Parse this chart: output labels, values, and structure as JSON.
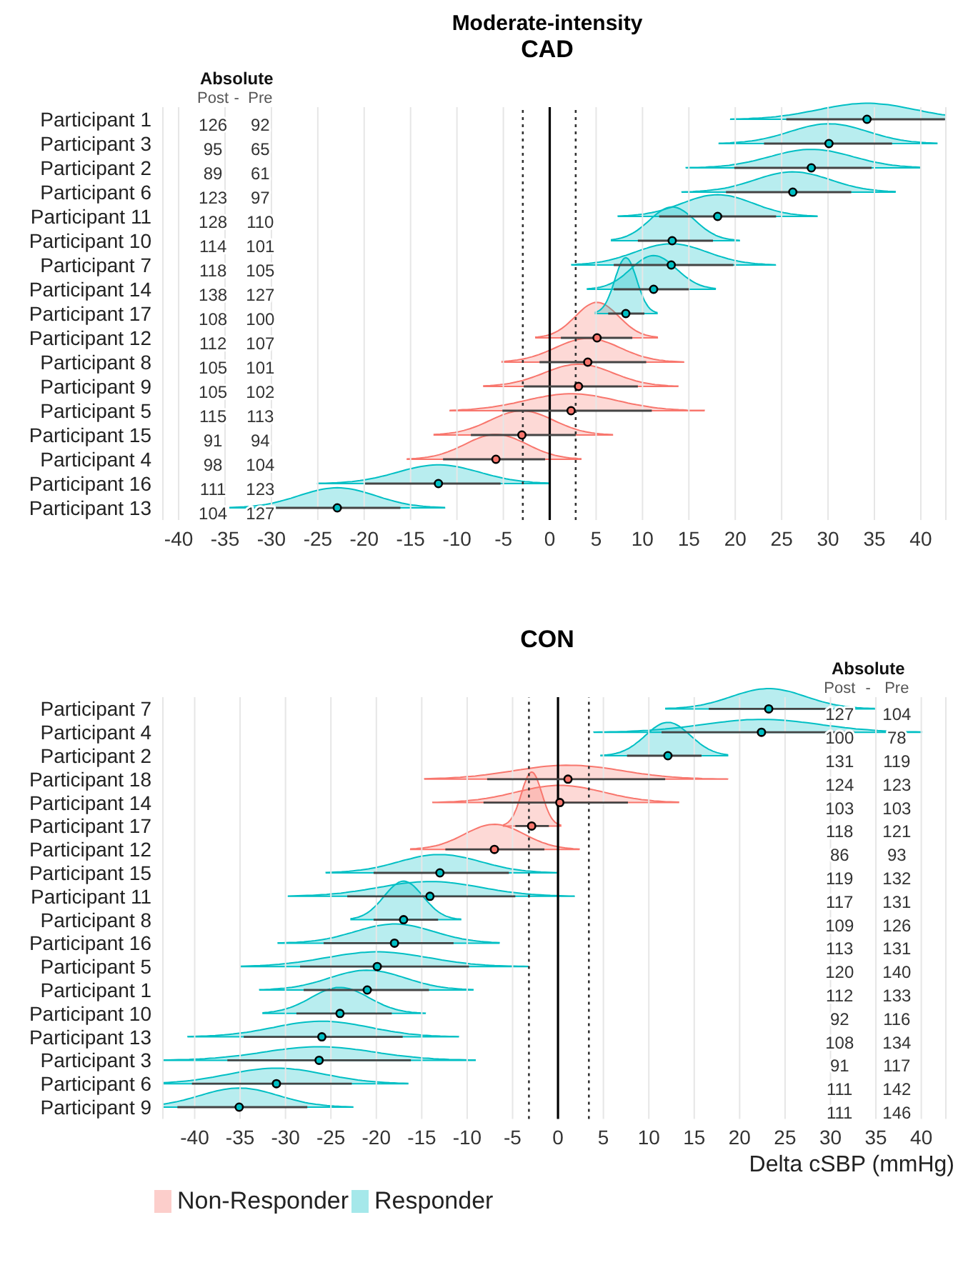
{
  "chart_data": [
    {
      "type": "scatter",
      "title": "Moderate-intensity",
      "subtitle": "CAD",
      "orientation": "horizontal",
      "categories": [
        "Participant 1",
        "Participant 3",
        "Participant 2",
        "Participant 6",
        "Participant 11",
        "Participant 10",
        "Participant 7",
        "Participant 14",
        "Participant 17",
        "Participant 12",
        "Participant 8",
        "Participant 9",
        "Participant 5",
        "Participant 15",
        "Participant 4",
        "Participant 16",
        "Participant 13"
      ],
      "series": [
        {
          "color": "#f8766d",
          "values": [
            null,
            null,
            null,
            null,
            null,
            null,
            null,
            null,
            null,
            5.1,
            4.1,
            3.1,
            2.3,
            -3.0,
            -5.8,
            null,
            null
          ],
          "errors": [
            null,
            null,
            null,
            null,
            null,
            null,
            null,
            null,
            null,
            [
              1.2,
              8.9
            ],
            [
              -1.1,
              10.4
            ],
            [
              -2.8,
              9.5
            ],
            [
              -5.1,
              11.0
            ],
            [
              -8.5,
              2.8
            ],
            [
              -11.5,
              -0.5
            ],
            null,
            null
          ]
        },
        {
          "color": "#00bfc4",
          "values": [
            34.2,
            30.1,
            28.2,
            26.2,
            18.1,
            13.2,
            13.1,
            11.2,
            8.2,
            null,
            null,
            null,
            null,
            null,
            null,
            -12.0,
            -22.9
          ],
          "errors": [
            [
              25.5,
              42.6
            ],
            [
              23.1,
              36.9
            ],
            [
              19.9,
              34.7
            ],
            [
              19.0,
              32.5
            ],
            [
              11.8,
              24.4
            ],
            [
              9.5,
              17.6
            ],
            [
              6.9,
              19.8
            ],
            [
              6.9,
              15.0
            ],
            [
              6.3,
              10.2
            ],
            null,
            null,
            null,
            null,
            null,
            null,
            [
              -19.9,
              -5.3
            ],
            [
              -29.7,
              -16.1
            ]
          ]
        }
      ],
      "xlim": [
        -41.7,
        42.7
      ],
      "xticks": [
        -40,
        -35,
        -30,
        -25,
        -20,
        -15,
        -10,
        -5,
        0,
        5,
        10,
        15,
        20,
        25,
        30,
        35,
        40
      ],
      "grid": "x",
      "ref_lines": [
        {
          "axis": "x",
          "value": 0,
          "color": "#000000",
          "line_style": "solid"
        },
        {
          "axis": "x",
          "value": -2.9,
          "color": "#333333",
          "line_style": "dotted"
        },
        {
          "axis": "x",
          "value": 2.8,
          "color": "#333333",
          "line_style": "dotted"
        }
      ],
      "annotations": [
        "Absolute",
        "Post",
        "-",
        "Pre",
        "126",
        "92",
        "95",
        "65",
        "89",
        "61",
        "123",
        "97",
        "128",
        "110",
        "114",
        "101",
        "118",
        "105",
        "138",
        "127",
        "108",
        "100",
        "112",
        "107",
        "105",
        "101",
        "105",
        "102",
        "115",
        "113",
        "91",
        "94",
        "98",
        "104",
        "111",
        "123",
        "104",
        "127"
      ]
    },
    {
      "type": "scatter",
      "title": "CON",
      "orientation": "horizontal",
      "xlabel": "Delta cSBP (mmHg)",
      "categories": [
        "Participant 7",
        "Participant 4",
        "Participant 2",
        "Participant 18",
        "Participant 14",
        "Participant 17",
        "Participant 12",
        "Participant 15",
        "Participant 11",
        "Participant 8",
        "Participant 16",
        "Participant 5",
        "Participant 1",
        "Participant 10",
        "Participant 13",
        "Participant 3",
        "Participant 6",
        "Participant 9"
      ],
      "series": [
        {
          "name": "Non-Responder",
          "color": "#f8766d",
          "values": [
            null,
            null,
            null,
            1.1,
            0.2,
            -2.9,
            -7.0,
            null,
            null,
            null,
            null,
            null,
            null,
            null,
            null,
            null,
            null,
            null
          ],
          "errors": [
            null,
            null,
            null,
            [
              -7.8,
              11.8
            ],
            [
              -8.2,
              7.7
            ],
            [
              -4.7,
              -1.0
            ],
            [
              -12.4,
              -1.5
            ],
            null,
            null,
            null,
            null,
            null,
            null,
            null,
            null,
            null,
            null,
            null
          ]
        },
        {
          "name": "Responder",
          "color": "#00bfc4",
          "values": [
            23.2,
            22.4,
            12.1,
            null,
            null,
            null,
            null,
            -13.0,
            -14.1,
            -17.0,
            -18.0,
            -19.9,
            -21.0,
            -24.0,
            -26.0,
            -26.3,
            -31.0,
            -35.1
          ],
          "errors": [
            [
              16.6,
              30.1
            ],
            [
              11.4,
              32.6
            ],
            [
              7.6,
              15.8
            ],
            null,
            null,
            null,
            null,
            [
              -20.3,
              -5.4
            ],
            [
              -23.2,
              -4.7
            ],
            [
              -20.3,
              -13.2
            ],
            [
              -25.8,
              -11.5
            ],
            [
              -28.4,
              -9.8
            ],
            [
              -28.0,
              -14.2
            ],
            [
              -28.8,
              -18.3
            ],
            [
              -34.6,
              -17.1
            ],
            [
              -36.4,
              -16.2
            ],
            [
              -40.3,
              -22.7
            ],
            [
              -41.9,
              -27.6
            ]
          ]
        }
      ],
      "xlim": [
        -43.5,
        42.7
      ],
      "xticks": [
        -40,
        -35,
        -30,
        -25,
        -20,
        -15,
        -10,
        -5,
        0,
        5,
        10,
        15,
        20,
        25,
        30,
        35,
        40
      ],
      "grid": "x",
      "legend": "bottom",
      "ref_lines": [
        {
          "axis": "x",
          "value": 0,
          "color": "#000000",
          "line_style": "solid"
        },
        {
          "axis": "x",
          "value": -3.2,
          "color": "#333333",
          "line_style": "dotted"
        },
        {
          "axis": "x",
          "value": 3.4,
          "color": "#333333",
          "line_style": "dotted"
        }
      ],
      "annotations": [
        "Absolute",
        "Post",
        "-",
        "Pre",
        "127",
        "104",
        "100",
        "78",
        "131",
        "119",
        "124",
        "123",
        "103",
        "103",
        "118",
        "121",
        "86",
        "93",
        "119",
        "132",
        "117",
        "131",
        "109",
        "126",
        "113",
        "131",
        "120",
        "140",
        "112",
        "133",
        "92",
        "116",
        "108",
        "134",
        "91",
        "117",
        "111",
        "142",
        "111",
        "146"
      ]
    }
  ]
}
